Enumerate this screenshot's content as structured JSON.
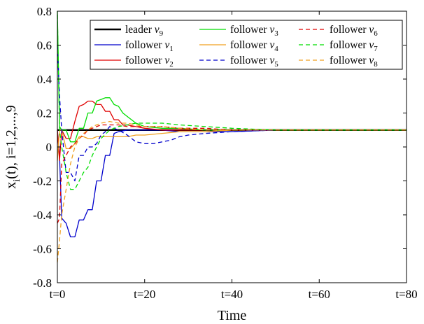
{
  "chart_data": {
    "type": "line",
    "xlabel": "Time",
    "ylabel": "x_i(t), i=1,2,...,9",
    "xlim": [
      0,
      80
    ],
    "ylim": [
      -0.8,
      0.8
    ],
    "x_ticks": [
      0,
      20,
      40,
      60,
      80
    ],
    "x_tick_labels": [
      "t=0",
      "t=20",
      "t=40",
      "t=60",
      "t=80"
    ],
    "y_ticks": [
      -0.8,
      -0.6,
      -0.4,
      -0.2,
      0,
      0.2,
      0.4,
      0.6,
      0.8
    ],
    "y_tick_labels": [
      "-0.8",
      "-0.6",
      "-0.4",
      "-0.2",
      "0",
      "0.2",
      "0.4",
      "0.6",
      "0.8"
    ],
    "grid": false,
    "legend_position": "top-right",
    "series": [
      {
        "name": "leader v9",
        "label_base": "leader ",
        "label_var": "v",
        "label_sub": "9",
        "color": "#000000",
        "dash": "solid",
        "width": 2.4,
        "x": [
          0,
          80
        ],
        "y": [
          0.1,
          0.1
        ]
      },
      {
        "name": "follower v1",
        "label_base": "follower ",
        "label_var": "v",
        "label_sub": "1",
        "color": "#0000cc",
        "dash": "solid",
        "width": 1.3,
        "x": [
          0,
          0.5,
          1,
          2,
          3,
          4,
          5,
          6,
          7,
          8,
          9,
          10,
          11,
          12,
          13,
          14,
          16,
          18,
          20,
          24,
          28,
          34,
          40,
          50,
          60,
          70,
          80
        ],
        "y": [
          0.1,
          -0.05,
          -0.42,
          -0.45,
          -0.53,
          -0.53,
          -0.43,
          -0.43,
          -0.37,
          -0.37,
          -0.2,
          -0.2,
          -0.05,
          -0.05,
          0.08,
          0.09,
          0.1,
          0.1,
          0.1,
          0.1,
          0.09,
          0.09,
          0.09,
          0.1,
          0.1,
          0.1,
          0.1
        ]
      },
      {
        "name": "follower v2",
        "label_base": "follower ",
        "label_var": "v",
        "label_sub": "2",
        "color": "#e00000",
        "dash": "solid",
        "width": 1.3,
        "x": [
          0,
          0.5,
          1,
          2,
          3,
          4,
          5,
          6,
          7,
          8,
          9,
          10,
          11,
          12,
          13,
          14,
          15,
          16,
          18,
          20,
          24,
          28,
          34,
          40,
          50,
          60,
          70,
          80
        ],
        "y": [
          0.1,
          -0.08,
          0.1,
          0.05,
          0.05,
          0.15,
          0.24,
          0.25,
          0.27,
          0.27,
          0.25,
          0.25,
          0.21,
          0.21,
          0.16,
          0.16,
          0.13,
          0.13,
          0.12,
          0.11,
          0.1,
          0.1,
          0.1,
          0.1,
          0.1,
          0.1,
          0.1,
          0.1
        ]
      },
      {
        "name": "follower v3",
        "label_base": "follower ",
        "label_var": "v",
        "label_sub": "3",
        "color": "#00dd00",
        "dash": "solid",
        "width": 1.3,
        "x": [
          0,
          0.5,
          1,
          2,
          3,
          4,
          5,
          6,
          7,
          8,
          9,
          10,
          11,
          12,
          13,
          14,
          15,
          16,
          18,
          20,
          24,
          28,
          34,
          40,
          50,
          60,
          70,
          80
        ],
        "y": [
          0.8,
          0.12,
          0.1,
          0.1,
          0.03,
          0.03,
          0.11,
          0.11,
          0.2,
          0.2,
          0.27,
          0.28,
          0.29,
          0.29,
          0.25,
          0.24,
          0.2,
          0.18,
          0.14,
          0.12,
          0.11,
          0.11,
          0.1,
          0.1,
          0.1,
          0.1,
          0.1,
          0.1
        ]
      },
      {
        "name": "follower v4",
        "label_base": "follower ",
        "label_var": "v",
        "label_sub": "4",
        "color": "#f0a020",
        "dash": "solid",
        "width": 1.3,
        "x": [
          0,
          0.5,
          1,
          2,
          3,
          4,
          5,
          6,
          7,
          8,
          9,
          10,
          11,
          12,
          14,
          16,
          18,
          20,
          24,
          28,
          34,
          40,
          50,
          60,
          70,
          80
        ],
        "y": [
          -0.08,
          0.1,
          0.1,
          -0.01,
          -0.01,
          0.02,
          0.06,
          0.06,
          0.05,
          0.05,
          0.06,
          0.06,
          0.06,
          0.06,
          0.06,
          0.06,
          0.07,
          0.07,
          0.08,
          0.09,
          0.09,
          0.1,
          0.1,
          0.1,
          0.1,
          0.1
        ]
      },
      {
        "name": "follower v5",
        "label_base": "follower ",
        "label_var": "v",
        "label_sub": "5",
        "color": "#0000cc",
        "dash": "dashed",
        "width": 1.3,
        "x": [
          0,
          0.5,
          1,
          2,
          3,
          4,
          5,
          6,
          7,
          8,
          9,
          10,
          11,
          12,
          14,
          16,
          18,
          20,
          22,
          24,
          26,
          28,
          30,
          34,
          40,
          50,
          60,
          70,
          80
        ],
        "y": [
          0.6,
          0.3,
          0.1,
          -0.15,
          -0.15,
          -0.2,
          -0.05,
          -0.05,
          0.0,
          0.0,
          0.02,
          0.07,
          0.09,
          0.12,
          0.1,
          0.07,
          0.03,
          0.02,
          0.02,
          0.03,
          0.04,
          0.06,
          0.07,
          0.08,
          0.09,
          0.1,
          0.1,
          0.1,
          0.1
        ]
      },
      {
        "name": "follower v6",
        "label_base": "follower ",
        "label_var": "v",
        "label_sub": "6",
        "color": "#e00000",
        "dash": "dashed",
        "width": 1.3,
        "x": [
          0,
          0.5,
          1,
          2,
          3,
          4,
          5,
          6,
          7,
          8,
          9,
          10,
          12,
          14,
          16,
          18,
          20,
          24,
          28,
          34,
          40,
          50,
          60,
          70,
          80
        ],
        "y": [
          -0.45,
          -0.42,
          -0.1,
          -0.05,
          0.0,
          0.02,
          0.05,
          0.07,
          0.1,
          0.11,
          0.12,
          0.13,
          0.13,
          0.13,
          0.12,
          0.12,
          0.12,
          0.12,
          0.11,
          0.11,
          0.1,
          0.1,
          0.1,
          0.1,
          0.1
        ]
      },
      {
        "name": "follower v7",
        "label_base": "follower ",
        "label_var": "v",
        "label_sub": "7",
        "color": "#00dd00",
        "dash": "dashed",
        "width": 1.3,
        "x": [
          0,
          0.5,
          1,
          2,
          3,
          4,
          5,
          6,
          7,
          8,
          9,
          10,
          12,
          14,
          16,
          18,
          20,
          24,
          28,
          34,
          40,
          50,
          60,
          70,
          80
        ],
        "y": [
          0.78,
          0.1,
          0.0,
          -0.15,
          -0.25,
          -0.25,
          -0.2,
          -0.15,
          -0.12,
          -0.05,
          0.0,
          0.05,
          0.1,
          0.12,
          0.13,
          0.14,
          0.14,
          0.14,
          0.13,
          0.12,
          0.11,
          0.1,
          0.1,
          0.1,
          0.1
        ]
      },
      {
        "name": "follower v8",
        "label_base": "follower ",
        "label_var": "v",
        "label_sub": "8",
        "color": "#f0a020",
        "dash": "dashed",
        "width": 1.3,
        "x": [
          0,
          0.5,
          1,
          2,
          3,
          4,
          5,
          6,
          7,
          8,
          9,
          10,
          12,
          14,
          16,
          18,
          20,
          24,
          28,
          34,
          40,
          50,
          60,
          70,
          80
        ],
        "y": [
          -0.68,
          -0.55,
          -0.4,
          -0.25,
          -0.1,
          0.0,
          0.05,
          0.08,
          0.1,
          0.12,
          0.13,
          0.14,
          0.15,
          0.14,
          0.14,
          0.13,
          0.12,
          0.12,
          0.11,
          0.1,
          0.1,
          0.1,
          0.1,
          0.1,
          0.1
        ]
      }
    ]
  }
}
